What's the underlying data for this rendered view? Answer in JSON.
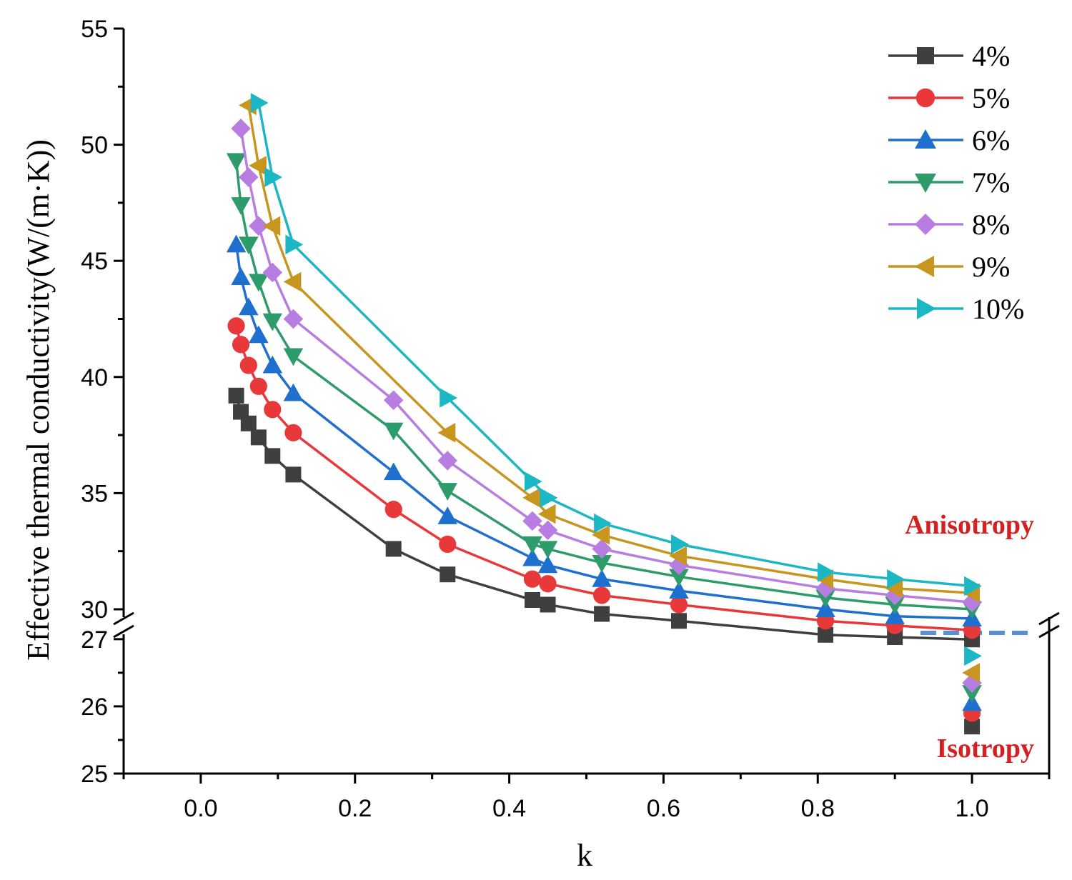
{
  "chart_data": {
    "type": "line",
    "xlabel": "k",
    "ylabel": "Effective thermal conductivity(W/(m·K))",
    "xlim": [
      -0.1,
      1.1
    ],
    "y_axis_break": {
      "upper_range": [
        29.2,
        55
      ],
      "lower_range": [
        25,
        27.2
      ]
    },
    "xticks": [
      "0.0",
      "0.2",
      "0.4",
      "0.6",
      "0.8",
      "1.0"
    ],
    "yticks_upper": [
      "30",
      "35",
      "40",
      "45",
      "50",
      "55"
    ],
    "yticks_lower": [
      "25",
      "26",
      "27"
    ],
    "annotations": {
      "upper": "Anisotropy",
      "lower": "Isotropy"
    },
    "x": [
      0.046,
      0.052,
      0.062,
      0.075,
      0.093,
      0.12,
      0.25,
      0.32,
      0.43,
      0.45,
      0.52,
      0.62,
      0.81,
      0.9,
      1.0
    ],
    "series": [
      {
        "name": "4%",
        "color": "#3f3f3f",
        "marker": "square",
        "values": [
          39.2,
          38.5,
          38.0,
          37.4,
          36.6,
          35.8,
          32.6,
          31.5,
          30.4,
          30.2,
          29.8,
          29.5,
          28.9,
          28.8,
          28.7
        ],
        "isotropy": 25.7
      },
      {
        "name": "5%",
        "color": "#e8383a",
        "marker": "circle",
        "values": [
          42.2,
          41.4,
          40.5,
          39.6,
          38.6,
          37.6,
          34.3,
          32.8,
          31.3,
          31.1,
          30.6,
          30.2,
          29.5,
          29.3,
          29.1
        ],
        "isotropy": 25.9
      },
      {
        "name": "6%",
        "color": "#1f6fce",
        "marker": "triangle-up",
        "values": [
          45.7,
          44.3,
          43.0,
          41.8,
          40.5,
          39.3,
          35.9,
          34.0,
          32.2,
          31.9,
          31.3,
          30.8,
          30.0,
          29.7,
          29.6
        ],
        "isotropy": 26.05
      },
      {
        "name": "7%",
        "color": "#2e9c6a",
        "marker": "triangle-down",
        "values": [
          49.3,
          47.4,
          45.7,
          44.1,
          42.4,
          40.9,
          37.7,
          35.1,
          32.8,
          32.6,
          32.0,
          31.4,
          30.5,
          30.2,
          30.0
        ],
        "isotropy": 26.2
      },
      {
        "name": "8%",
        "color": "#b77de0",
        "marker": "diamond",
        "values": [
          50.7,
          48.6,
          46.5,
          44.5,
          42.5,
          39.0,
          36.4,
          33.8,
          33.4,
          32.6,
          31.9,
          30.9,
          30.6,
          30.3,
          30.3
        ],
        "x": [
          0.052,
          0.062,
          0.075,
          0.093,
          0.12,
          0.25,
          0.32,
          0.43,
          0.45,
          0.52,
          0.62,
          0.81,
          0.9,
          1.0,
          1.0
        ],
        "isotropy": 26.35
      },
      {
        "name": "9%",
        "color": "#c8961e",
        "marker": "triangle-left",
        "values": [
          51.7,
          49.1,
          46.5,
          44.1,
          37.6,
          34.8,
          34.1,
          33.2,
          32.3,
          31.3,
          30.9,
          30.7
        ],
        "x": [
          0.062,
          0.075,
          0.093,
          0.12,
          0.32,
          0.43,
          0.45,
          0.52,
          0.62,
          0.81,
          0.9,
          1.0
        ],
        "isotropy": 26.5
      },
      {
        "name": "10%",
        "color": "#1cb7c4",
        "marker": "triangle-right",
        "values": [
          51.8,
          48.6,
          45.7,
          39.1,
          35.5,
          34.8,
          33.7,
          32.8,
          31.6,
          31.3,
          31.0
        ],
        "x": [
          0.075,
          0.093,
          0.12,
          0.32,
          0.43,
          0.45,
          0.52,
          0.62,
          0.81,
          0.9,
          1.0
        ],
        "isotropy": 26.75
      }
    ],
    "legend_position": "top-right"
  }
}
